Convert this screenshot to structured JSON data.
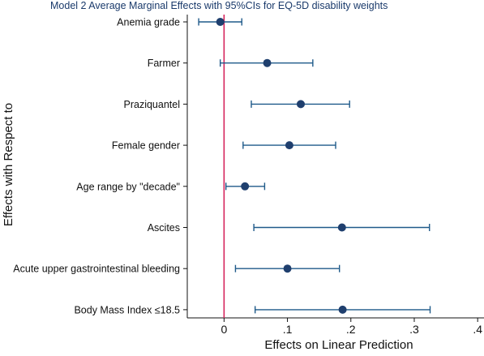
{
  "chart_data": {
    "type": "scatter",
    "subtype": "coefficient-plot-with-95ci",
    "title": "Model 2 Average Marginal Effects with 95%CIs  for EQ-5D disability weights",
    "xlabel": "Effects on Linear Prediction",
    "ylabel": "Effects with Respect to",
    "xlim": [
      -0.058,
      0.41
    ],
    "xticks": [
      0,
      0.1,
      0.2,
      0.3,
      0.4
    ],
    "xtick_labels": [
      "0",
      ".1",
      ".2",
      ".3",
      ".4"
    ],
    "reference_line": 0,
    "grid": false,
    "legend": "none",
    "categories": [
      "Anemia grade",
      "Farmer",
      "Praziquantel",
      "Female gender",
      "Age range by \"decade\"",
      "Ascites",
      "Acute upper gastrointestinal bleeding",
      "Body Mass Index ≤18.5"
    ],
    "estimates": [
      -0.006,
      0.068,
      0.121,
      0.103,
      0.033,
      0.186,
      0.1,
      0.187
    ],
    "ci_lower": [
      -0.04,
      -0.006,
      0.043,
      0.03,
      0.003,
      0.047,
      0.018,
      0.049
    ],
    "ci_upper": [
      0.028,
      0.14,
      0.198,
      0.176,
      0.064,
      0.324,
      0.182,
      0.325
    ]
  },
  "colors": {
    "marker": "#1f3f6e",
    "ci_line": "#1f5a8a",
    "reference_line": "#d6245c",
    "title": "#1a3a6b",
    "text": "#111111",
    "axis": "#111111"
  }
}
